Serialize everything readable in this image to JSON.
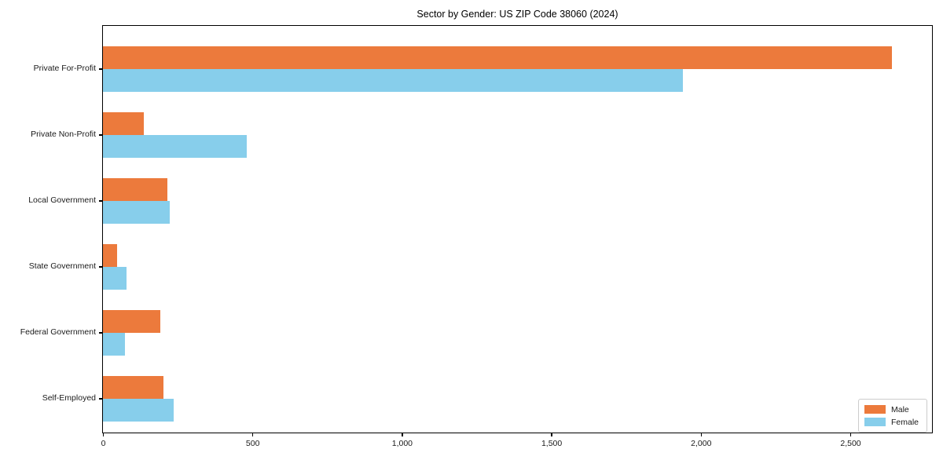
{
  "chart_data": {
    "type": "bar",
    "orientation": "horizontal",
    "title": "Sector by Gender: US ZIP Code 38060 (2024)",
    "categories": [
      "Private For-Profit",
      "Private Non-Profit",
      "Local Government",
      "State Government",
      "Federal Government",
      "Self-Employed"
    ],
    "series": [
      {
        "name": "Male",
        "color": "#EC7A3C",
        "values": [
          2640,
          138,
          215,
          47,
          192,
          202
        ]
      },
      {
        "name": "Female",
        "color": "#87CEEB",
        "values": [
          1940,
          481,
          224,
          79,
          74,
          237
        ]
      }
    ],
    "xlim": [
      0,
      2776
    ],
    "xticks": [
      0,
      500,
      1000,
      1500,
      2000,
      2500
    ],
    "xtick_labels": [
      "0",
      "500",
      "1,000",
      "1,500",
      "2,000",
      "2,500"
    ],
    "grid": false,
    "legend_position": "lower right",
    "axis_color": "#000000"
  }
}
